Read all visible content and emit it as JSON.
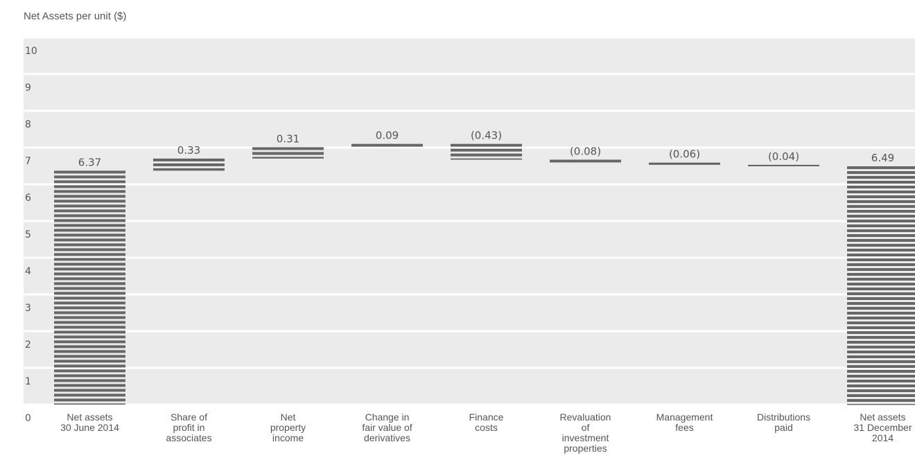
{
  "chart_data": {
    "type": "bar",
    "subtype": "waterfall",
    "ylabel": "Net Assets per unit ($)",
    "ylim": [
      0,
      10
    ],
    "yticks": [
      0,
      1,
      2,
      3,
      4,
      5,
      6,
      7,
      8,
      9,
      10
    ],
    "grid": true,
    "categories": [
      [
        "Net assets",
        "30 June 2014"
      ],
      [
        "Share of",
        "profit in",
        "associates"
      ],
      [
        "Net",
        "property",
        "income"
      ],
      [
        "Change in",
        "fair value of",
        "derivatives"
      ],
      [
        "Finance",
        "costs"
      ],
      [
        "Revaluation",
        "of",
        "investment",
        "properties"
      ],
      [
        "Management",
        "fees"
      ],
      [
        "Distributions",
        "paid"
      ],
      [
        "Net assets",
        "31 December",
        "2014"
      ]
    ],
    "values": [
      6.37,
      0.33,
      0.31,
      0.09,
      -0.43,
      -0.08,
      -0.06,
      -0.04,
      6.49
    ],
    "value_labels": [
      "6.37",
      "0.33",
      "0.31",
      "0.09",
      "(0.43)",
      "(0.08)",
      "(0.06)",
      "(0.04)",
      "6.49"
    ],
    "is_total": [
      true,
      false,
      false,
      false,
      false,
      false,
      false,
      false,
      true
    ],
    "colors": {
      "bar": "#666666",
      "band": "#ebebeb",
      "text": "#555555"
    }
  }
}
